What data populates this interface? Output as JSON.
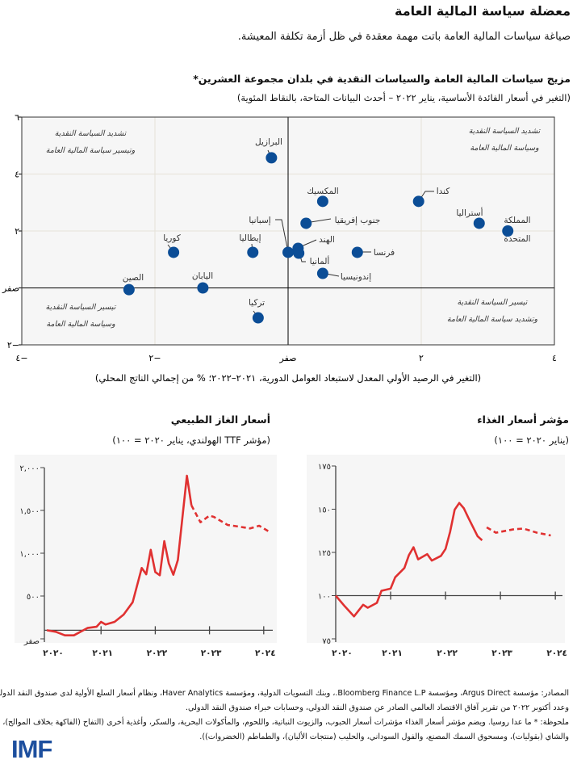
{
  "header": {
    "title": "معضلة سياسة المالية العامة",
    "subtitle": "صياغة سياسات المالية العامة باتت مهمة معقدة في ظل أزمة تكلفة المعيشة."
  },
  "colors": {
    "dot": "#0b4d96",
    "line": "#e03131",
    "plot_bg": "#f6f6f6",
    "grid": "#e6e2d8",
    "logo": "#1d4f9e"
  },
  "chart_data": [
    {
      "type": "scatter",
      "title": "مزيج سياسات المالية العامة والسياسات النقدية في بلدان مجموعة العشرين*",
      "subtitle": "(التغير في أسعار الفائدة الأساسية، يناير ٢٠٢٢ – أحدث البيانات المتاحة، بالنقاط المئوية)",
      "xlabel": "(التغير في الرصيد الأولي المعدل لاستبعاد العوامل الدورية، ٢٠٢١–٢٠٢٢؛ % من إجمالي الناتج المحلي)",
      "xlim": [
        -4,
        4
      ],
      "ylim": [
        -2,
        6
      ],
      "grid": true,
      "x_ticks": [
        {
          "v": -4,
          "label": "٤−"
        },
        {
          "v": -2,
          "label": "٢−"
        },
        {
          "v": 0,
          "label": "صفر"
        },
        {
          "v": 2,
          "label": "٢"
        },
        {
          "v": 4,
          "label": "٤"
        }
      ],
      "y_ticks": [
        {
          "v": 6,
          "label": "٦"
        },
        {
          "v": 4,
          "label": "٤"
        },
        {
          "v": 2,
          "label": "٢"
        },
        {
          "v": 0,
          "label": "صفر"
        },
        {
          "v": -2,
          "label": "٢−"
        }
      ],
      "quadrant_labels": [
        {
          "position": "top-left",
          "lines": [
            "تشديد السياسة النقدية",
            "وتيسير سياسة المالية العامة"
          ]
        },
        {
          "position": "top-right",
          "lines": [
            "تشديد السياسة النقدية",
            "وسياسة المالية العامة"
          ]
        },
        {
          "position": "bottom-left",
          "lines": [
            "تيسير السياسة النقدية",
            "وسياسة المالية العامة"
          ]
        },
        {
          "position": "bottom-right",
          "lines": [
            "تيسير السياسة النقدية",
            "وتشديد سياسة المالية العامة"
          ]
        }
      ],
      "points": [
        {
          "label": "البرازيل",
          "x": -0.25,
          "y": 4.57
        },
        {
          "label": "كوريا",
          "x": -1.72,
          "y": 1.25
        },
        {
          "label": "إيطاليا",
          "x": -0.53,
          "y": 1.25
        },
        {
          "label": "إسبانيا",
          "x": 0.0,
          "y": 1.25
        },
        {
          "label": "الصين",
          "x": -2.39,
          "y": -0.06
        },
        {
          "label": "اليابان",
          "x": -1.28,
          "y": 0.0
        },
        {
          "label": "تركيا",
          "x": -0.45,
          "y": -1.05
        },
        {
          "label": "المكسيك",
          "x": 0.52,
          "y": 3.04
        },
        {
          "label": "جنوب إفريقيا",
          "x": 0.27,
          "y": 2.27
        },
        {
          "label": "الهند",
          "x": 0.15,
          "y": 1.39
        },
        {
          "label": "ألمانيا",
          "x": 0.16,
          "y": 1.22
        },
        {
          "label": "فرنسا",
          "x": 1.04,
          "y": 1.25
        },
        {
          "label": "إندونيسيا",
          "x": 0.52,
          "y": 0.51
        },
        {
          "label": "كندا",
          "x": 1.96,
          "y": 3.04
        },
        {
          "label": "أستراليا",
          "x": 2.87,
          "y": 2.27
        },
        {
          "label": "المملكة المتحدة",
          "lines": [
            "المملكة",
            "المتحدة"
          ],
          "x": 3.3,
          "y": 2.0
        }
      ]
    },
    {
      "type": "line",
      "title": "أسعار الغاز الطبيعي",
      "subtitle": "(مؤشر TTF الهولندي، يناير ٢٠٢٠ = ١٠٠)",
      "ylim": [
        0,
        2000
      ],
      "y_ticks": [
        {
          "v": 2000,
          "label": "٢,٠٠٠"
        },
        {
          "v": 1500,
          "label": "١,٥٠٠"
        },
        {
          "v": 1000,
          "label": "١,٠٠٠"
        },
        {
          "v": 500,
          "label": "٥٠٠"
        },
        {
          "v": 0,
          "label": "صفر"
        }
      ],
      "x_ticks": [
        {
          "v": "2020-01",
          "label": "٢٠٢٠"
        },
        {
          "v": "2021-01",
          "label": "٢٠٢١"
        },
        {
          "v": "2022-01",
          "label": "٢٠٢٢"
        },
        {
          "v": "2023-01",
          "label": "٢٠٢٣"
        },
        {
          "v": "2024-01",
          "label": "٢٠٢٤"
        }
      ],
      "baseline": 100,
      "series": [
        {
          "style": "solid",
          "points": [
            [
              "2020-01",
              100
            ],
            [
              "2020-03",
              82
            ],
            [
              "2020-05",
              41
            ],
            [
              "2020-07",
              41
            ],
            [
              "2020-10",
              126
            ],
            [
              "2020-12",
              141
            ],
            [
              "2021-01",
              198
            ],
            [
              "2021-02",
              167
            ],
            [
              "2021-04",
              198
            ],
            [
              "2021-06",
              283
            ],
            [
              "2021-08",
              427
            ],
            [
              "2021-10",
              827
            ],
            [
              "2021-11",
              754
            ],
            [
              "2021-12",
              1040
            ],
            [
              "2022-01",
              780
            ],
            [
              "2022-02",
              742
            ],
            [
              "2022-03",
              1141
            ],
            [
              "2022-04",
              880
            ],
            [
              "2022-05",
              748
            ],
            [
              "2022-06",
              921
            ],
            [
              "2022-08",
              1905
            ],
            [
              "2022-09",
              1559
            ]
          ]
        },
        {
          "style": "dashed",
          "points": [
            [
              "2022-09",
              1559
            ],
            [
              "2022-11",
              1361
            ],
            [
              "2023-01",
              1440
            ],
            [
              "2023-02",
              1424
            ],
            [
              "2023-05",
              1330
            ],
            [
              "2023-07",
              1315
            ],
            [
              "2023-10",
              1290
            ],
            [
              "2023-12",
              1321
            ],
            [
              "2024-02",
              1258
            ]
          ]
        }
      ]
    },
    {
      "type": "line",
      "title": "مؤشر أسعار الغذاء",
      "subtitle": "(يناير ٢٠٢٠ = ١٠٠)",
      "ylim": [
        75,
        175
      ],
      "y_ticks": [
        {
          "v": 175,
          "label": "١٧٥"
        },
        {
          "v": 150,
          "label": "١٥٠"
        },
        {
          "v": 125,
          "label": "١٢٥"
        },
        {
          "v": 100,
          "label": "١٠٠"
        },
        {
          "v": 75,
          "label": "٧٥"
        }
      ],
      "x_ticks": [
        {
          "v": "2020-01",
          "label": "٢٠٢٠"
        },
        {
          "v": "2021-01",
          "label": "٢٠٢١"
        },
        {
          "v": "2022-01",
          "label": "٢٠٢٢"
        },
        {
          "v": "2023-01",
          "label": "٢٠٢٣"
        },
        {
          "v": "2024-01",
          "label": "٢٠٢٤"
        }
      ],
      "baseline": 100,
      "series": [
        {
          "style": "solid",
          "points": [
            [
              "2020-01",
              100
            ],
            [
              "2020-03",
              93.8
            ],
            [
              "2020-05",
              88
            ],
            [
              "2020-07",
              94.7
            ],
            [
              "2020-08",
              93
            ],
            [
              "2020-10",
              95.8
            ],
            [
              "2020-11",
              102.8
            ],
            [
              "2021-01",
              104
            ],
            [
              "2021-02",
              110.6
            ],
            [
              "2021-04",
              116
            ],
            [
              "2021-05",
              123.4
            ],
            [
              "2021-06",
              128
            ],
            [
              "2021-07",
              121
            ],
            [
              "2021-09",
              124
            ],
            [
              "2021-10",
              120.3
            ],
            [
              "2021-12",
              123
            ],
            [
              "2022-01",
              127
            ],
            [
              "2022-02",
              137
            ],
            [
              "2022-03",
              149.7
            ],
            [
              "2022-04",
              153.6
            ],
            [
              "2022-05",
              150.5
            ],
            [
              "2022-06",
              145
            ],
            [
              "2022-08",
              134.4
            ],
            [
              "2022-09",
              132
            ]
          ]
        },
        {
          "style": "dashed",
          "points": [
            [
              "2022-10",
              139.5
            ],
            [
              "2022-12",
              136.4
            ],
            [
              "2023-04",
              138.4
            ],
            [
              "2023-06",
              138.8
            ],
            [
              "2023-09",
              136.4
            ],
            [
              "2023-12",
              134.8
            ]
          ]
        }
      ]
    }
  ],
  "footer": {
    "lines": [
      "المصادر: مؤسسة Argus Direct، ومؤسسة Bloomberg Finance L.P.، وبنك التسويات الدولية، ومؤسسة Haver Analytics، ونظام أسعار السلع الأولية لدى صندوق النقد الدولي،",
      "وعدد أكتوبر ٢٠٢٢ من تقرير آفاق الاقتصاد العالمي الصادر عن صندوق النقد الدولي، وحسابات خبراء صندوق النقد الدولي.",
      "ملحوظة: * ما عدا روسيا. ويضم مؤشر أسعار الغذاء مؤشرات أسعار الحبوب، والزيوت النباتية، واللحوم، والمأكولات البحرية، والسكر، وأغذية أخرى (التفاح (الفاكهة بخلاف الموالح)، والموز،",
      "والشاي (بقوليات)، ومسحوق السمك المصنع، والفول السوداني، والحليب (منتجات الألبان)، والطماطم (الخضروات))."
    ],
    "logo": "IMF"
  }
}
